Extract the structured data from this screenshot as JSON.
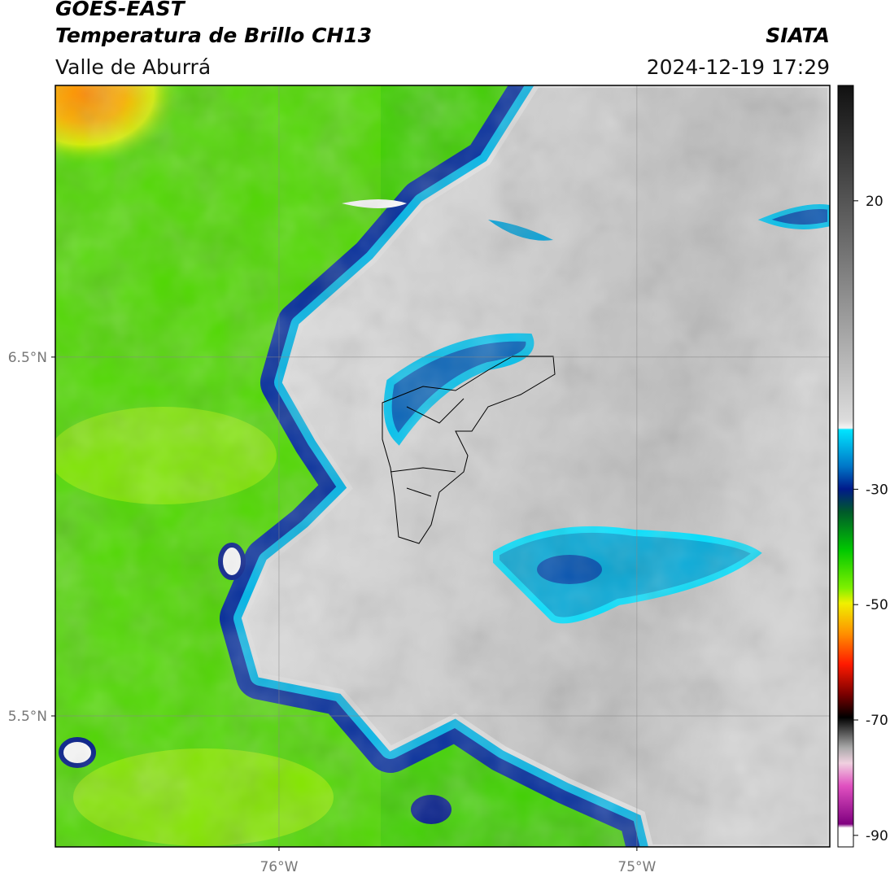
{
  "header": {
    "title": "GOES-EAST",
    "subtitle": "Temperatura de Brillo CH13",
    "region": "Valle de Aburrá",
    "source": "SIATA",
    "timestamp": "2024-12-19 17:29"
  },
  "map": {
    "lat_range": [
      5.135,
      7.257
    ],
    "lon_range": [
      -76.625,
      -74.461
    ],
    "lat_ticks": [
      {
        "value": 6.5,
        "label": "6.5°N"
      },
      {
        "value": 5.5,
        "label": "5.5°N"
      }
    ],
    "lon_ticks": [
      {
        "value": -76,
        "label": "76°W"
      },
      {
        "value": -75,
        "label": "75°W"
      }
    ]
  },
  "colorbar": {
    "range": [
      -92,
      40
    ],
    "ticks": [
      20,
      -30,
      -50,
      -70,
      -90
    ]
  }
}
